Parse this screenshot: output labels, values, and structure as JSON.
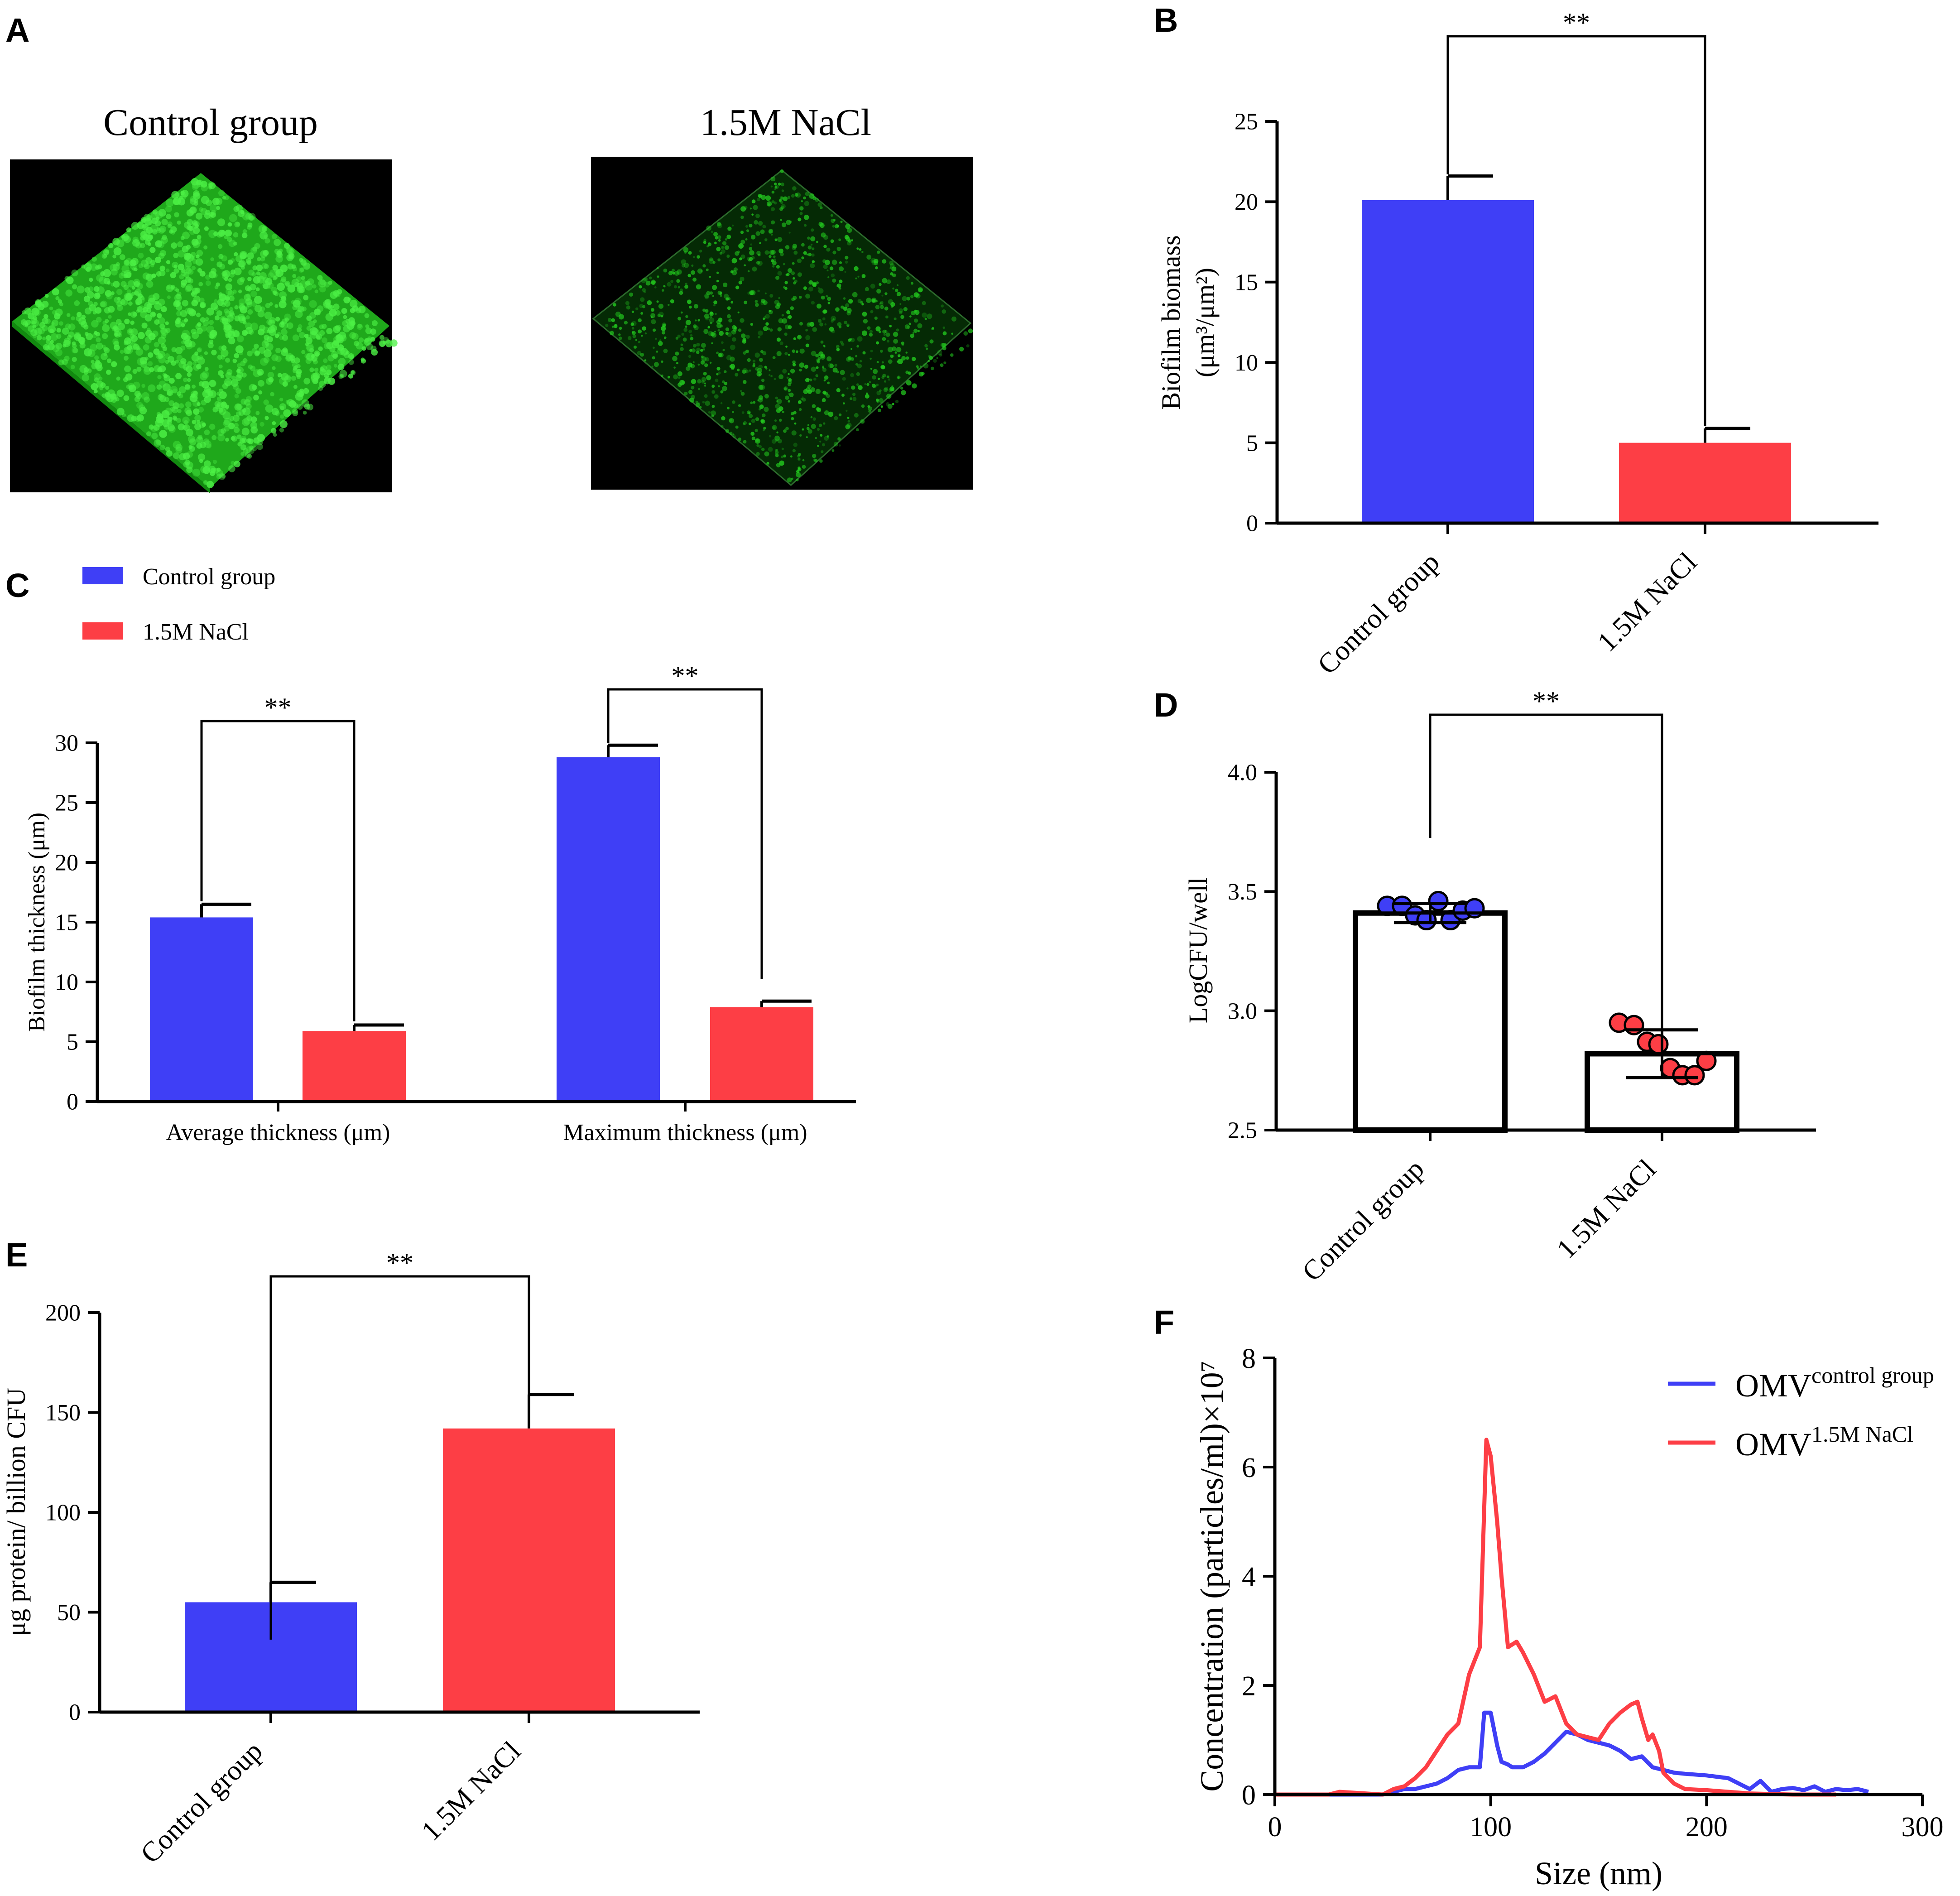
{
  "colors": {
    "control": "#3f3ff6",
    "nacl": "#fd3e45",
    "axis": "#000000",
    "micro_bg": "#000000",
    "micro_green": "#22c81e"
  },
  "panels": {
    "A": {
      "letter": "A",
      "images": [
        {
          "title": "Control group",
          "density": "dense"
        },
        {
          "title": "1.5M NaCl",
          "density": "sparse"
        }
      ]
    },
    "B": {
      "letter": "B"
    },
    "C": {
      "letter": "C"
    },
    "D": {
      "letter": "D"
    },
    "E": {
      "letter": "E"
    },
    "F": {
      "letter": "F"
    }
  },
  "chart_data": [
    {
      "panel": "B",
      "type": "bar",
      "categories": [
        "Control group",
        "1.5M NaCl"
      ],
      "values": [
        20.1,
        5.0
      ],
      "errors": [
        1.5,
        0.9
      ],
      "ylabel_line1": "Biofilm biomass",
      "ylabel_line2": "(μm³/μm²)",
      "ylim": [
        0,
        25
      ],
      "yticks": [
        0,
        5,
        10,
        15,
        20,
        25
      ],
      "significance": "**"
    },
    {
      "panel": "C",
      "type": "bar",
      "categories": [
        "Average thickness (μm)",
        "Maximum thickness (μm)"
      ],
      "series": [
        {
          "name": "Control group",
          "values": [
            15.4,
            28.8
          ],
          "errors": [
            1.1,
            1.0
          ]
        },
        {
          "name": "1.5M NaCl",
          "values": [
            5.9,
            7.9
          ],
          "errors": [
            0.5,
            0.5
          ]
        }
      ],
      "ylabel": "Biofilm thickness (μm)",
      "ylim": [
        0,
        30
      ],
      "yticks": [
        0,
        5,
        10,
        15,
        20,
        25,
        30
      ],
      "significance": [
        "**",
        "**"
      ],
      "legend": "top-left"
    },
    {
      "panel": "D",
      "type": "scatter",
      "categories": [
        "Control group",
        "1.5M NaCl"
      ],
      "means": [
        3.41,
        2.82
      ],
      "sd": [
        0.04,
        0.1
      ],
      "points": [
        [
          3.44,
          3.44,
          3.4,
          3.38,
          3.46,
          3.38,
          3.42,
          3.43
        ],
        [
          2.95,
          2.94,
          2.87,
          2.86,
          2.76,
          2.73,
          2.73,
          2.79
        ]
      ],
      "ylabel": "LogCFU/well",
      "ylim": [
        2.5,
        4.0
      ],
      "yticks": [
        "2.5",
        "3.0",
        "3.5",
        "4.0"
      ],
      "significance": "**"
    },
    {
      "panel": "E",
      "type": "bar",
      "categories": [
        "Control group",
        "1.5M NaCl"
      ],
      "values": [
        55,
        142
      ],
      "errors": [
        10,
        17
      ],
      "ylabel": "μg protein/ billion CFU",
      "ylim": [
        0,
        200
      ],
      "yticks": [
        0,
        50,
        100,
        150,
        200
      ],
      "significance": "**"
    },
    {
      "panel": "F",
      "type": "line",
      "xlabel": "Size (nm)",
      "ylabel": "Concentration (particles/ml)×10⁷",
      "xlim": [
        0,
        300
      ],
      "ylim": [
        0,
        8
      ],
      "xticks": [
        0,
        100,
        200,
        300
      ],
      "yticks": [
        0,
        2,
        4,
        6,
        8
      ],
      "legend": "top-right",
      "series": [
        {
          "name": "OMV",
          "sup": "control group",
          "x": [
            0,
            30,
            50,
            60,
            65,
            70,
            75,
            80,
            85,
            90,
            95,
            97,
            100,
            103,
            105,
            108,
            110,
            115,
            120,
            125,
            130,
            135,
            140,
            145,
            150,
            155,
            160,
            165,
            170,
            175,
            180,
            185,
            190,
            200,
            210,
            220,
            225,
            230,
            235,
            240,
            245,
            250,
            255,
            260,
            265,
            270,
            275
          ],
          "y": [
            0,
            0,
            0,
            0.1,
            0.1,
            0.15,
            0.2,
            0.3,
            0.45,
            0.5,
            0.5,
            1.5,
            1.5,
            0.9,
            0.6,
            0.55,
            0.5,
            0.5,
            0.6,
            0.75,
            0.95,
            1.15,
            1.1,
            1.0,
            0.95,
            0.9,
            0.8,
            0.65,
            0.7,
            0.5,
            0.45,
            0.4,
            0.38,
            0.35,
            0.3,
            0.1,
            0.25,
            0.05,
            0.1,
            0.12,
            0.08,
            0.15,
            0.05,
            0.1,
            0.08,
            0.1,
            0.05
          ]
        },
        {
          "name": "OMV",
          "sup": "1.5M NaCl",
          "x": [
            0,
            25,
            30,
            50,
            55,
            60,
            65,
            70,
            75,
            80,
            85,
            90,
            95,
            98,
            100,
            103,
            105,
            108,
            112,
            115,
            120,
            125,
            130,
            135,
            140,
            145,
            150,
            155,
            160,
            165,
            168,
            170,
            173,
            175,
            178,
            180,
            185,
            190,
            200,
            210,
            220,
            240,
            260
          ],
          "y": [
            0,
            0,
            0.05,
            0,
            0.1,
            0.15,
            0.3,
            0.5,
            0.8,
            1.1,
            1.3,
            2.2,
            2.7,
            6.5,
            6.2,
            5.0,
            4.0,
            2.7,
            2.8,
            2.6,
            2.2,
            1.7,
            1.8,
            1.3,
            1.1,
            1.05,
            1.0,
            1.3,
            1.5,
            1.65,
            1.7,
            1.4,
            1.0,
            1.1,
            0.8,
            0.4,
            0.2,
            0.1,
            0.08,
            0.05,
            0.02,
            0,
            0
          ]
        }
      ]
    }
  ]
}
